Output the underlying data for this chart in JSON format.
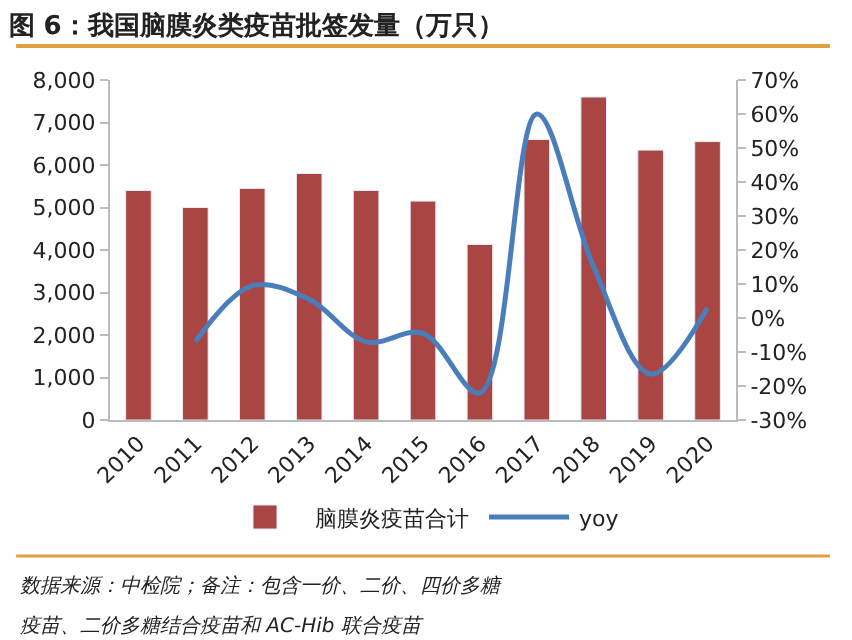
{
  "chart_data": {
    "type": "bar",
    "title": "图 6：我国脑膜炎类疫苗批签发量（万只）",
    "categories": [
      "2010",
      "2011",
      "2012",
      "2013",
      "2014",
      "2015",
      "2016",
      "2017",
      "2018",
      "2019",
      "2020"
    ],
    "series": [
      {
        "name": "脑膜炎疫苗合计",
        "color": "#a94643",
        "values": [
          5400,
          5000,
          5450,
          5800,
          5400,
          5150,
          4130,
          6600,
          7600,
          6350,
          6550
        ]
      },
      {
        "name": "yoy",
        "type": "line",
        "axis": "y2",
        "color": "#4a7ebb",
        "values": [
          null,
          -7,
          9.5,
          5.5,
          -7,
          -4.5,
          -22,
          60,
          15,
          -16.5,
          3
        ]
      }
    ],
    "ylim": [
      0,
      8000
    ],
    "yticks": [
      {
        "value": 0,
        "label": "0"
      },
      {
        "value": 1000,
        "label": "1,000"
      },
      {
        "value": 2000,
        "label": "2,000"
      },
      {
        "value": 3000,
        "label": "3,000"
      },
      {
        "value": 4000,
        "label": "4,000"
      },
      {
        "value": 5000,
        "label": "5,000"
      },
      {
        "value": 6000,
        "label": "6,000"
      },
      {
        "value": 7000,
        "label": "7,000"
      },
      {
        "value": 8000,
        "label": "8,000"
      }
    ],
    "y2lim": [
      -30,
      70
    ],
    "y2ticks": [
      {
        "value": -30,
        "label": "-30%"
      },
      {
        "value": -20,
        "label": "-20%"
      },
      {
        "value": -10,
        "label": "-10%"
      },
      {
        "value": 0,
        "label": "0%"
      },
      {
        "value": 10,
        "label": "10%"
      },
      {
        "value": 20,
        "label": "20%"
      },
      {
        "value": 30,
        "label": "30%"
      },
      {
        "value": 40,
        "label": "40%"
      },
      {
        "value": 50,
        "label": "50%"
      },
      {
        "value": 60,
        "label": "60%"
      },
      {
        "value": 70,
        "label": "70%"
      }
    ],
    "legend": "bottom",
    "marker": "none",
    "line_style": "solid",
    "annotations": [
      "数据来源：中检院；备注：包含一价、二价、四价多糖",
      "疫苗、二价多糖结合疫苗和 AC-Hib 联合疫苗"
    ]
  }
}
